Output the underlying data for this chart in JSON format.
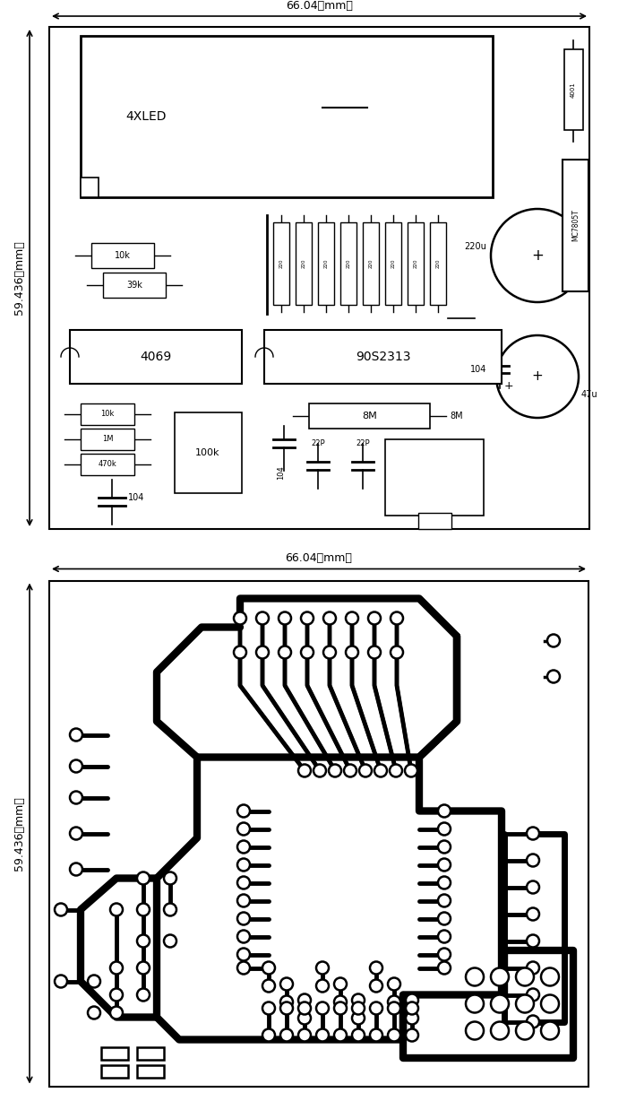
{
  "bg_color": "#ffffff",
  "line_color": "#000000",
  "top": {
    "width_label": "66.04（mm）",
    "height_label": "59.436（mm）"
  },
  "bottom": {
    "width_label": "66.04（mm）",
    "height_label": "59.436（mm）"
  }
}
